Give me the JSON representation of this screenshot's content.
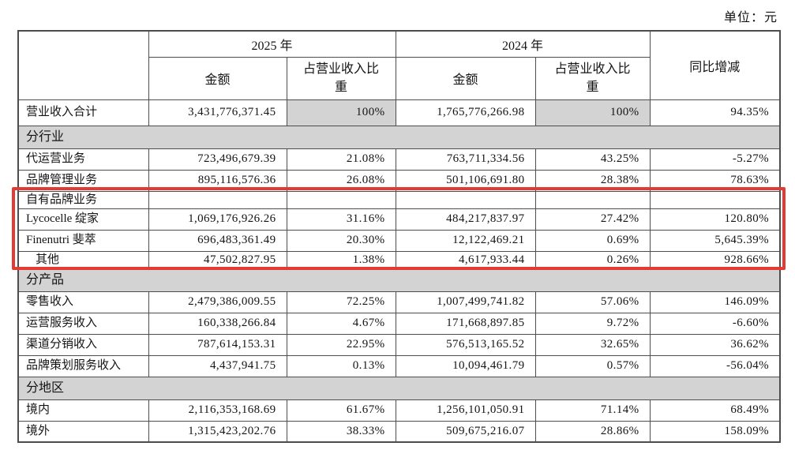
{
  "unit_label": "单位：元",
  "colors": {
    "section_bg": "#d3d3d3",
    "shade_bg": "#d3d3d3",
    "table_border": "#4d4d4d",
    "highlight_border": "#e23b33",
    "text": "#141414",
    "page_bg": "#ffffff"
  },
  "table": {
    "header": {
      "year_2025": "2025 年",
      "year_2024": "2024 年",
      "amount": "金额",
      "share": "占营业收入比重",
      "yoy": "同比增减"
    },
    "rows": [
      {
        "type": "data",
        "tall": true,
        "shade_shares": true,
        "label": "营业收入合计",
        "amount_2025": "3,431,776,371.45",
        "share_2025": "100%",
        "amount_2024": "1,765,776,266.98",
        "share_2024": "100%",
        "yoy": "94.35%"
      },
      {
        "type": "section",
        "label": "分行业"
      },
      {
        "type": "data",
        "label": "代运营业务",
        "amount_2025": "723,496,679.39",
        "share_2025": "21.08%",
        "amount_2024": "763,711,334.56",
        "share_2024": "43.25%",
        "yoy": "-5.27%"
      },
      {
        "type": "data",
        "label": "品牌管理业务",
        "amount_2025": "895,116,576.36",
        "share_2025": "26.08%",
        "amount_2024": "501,106,691.80",
        "share_2024": "28.38%",
        "yoy": "78.63%"
      },
      {
        "type": "data",
        "compact": true,
        "highlight": true,
        "label": "自有品牌业务",
        "amount_2025": "",
        "share_2025": "",
        "amount_2024": "",
        "share_2024": "",
        "yoy": ""
      },
      {
        "type": "data",
        "highlight": true,
        "label": "Lycocelle 绽家",
        "amount_2025": "1,069,176,926.26",
        "share_2025": "31.16%",
        "amount_2024": "484,217,837.97",
        "share_2024": "27.42%",
        "yoy": "120.80%"
      },
      {
        "type": "data",
        "highlight": true,
        "label": "Finenutri 斐萃",
        "amount_2025": "696,483,361.49",
        "share_2025": "20.30%",
        "amount_2024": "12,122,469.21",
        "share_2024": "0.69%",
        "yoy": "5,645.39%"
      },
      {
        "type": "data",
        "compact": true,
        "highlight": true,
        "indent": true,
        "label": "其他",
        "amount_2025": "47,502,827.95",
        "share_2025": "1.38%",
        "amount_2024": "4,617,933.44",
        "share_2024": "0.26%",
        "yoy": "928.66%"
      },
      {
        "type": "section",
        "label": "分产品"
      },
      {
        "type": "data",
        "label": "零售收入",
        "amount_2025": "2,479,386,009.55",
        "share_2025": "72.25%",
        "amount_2024": "1,007,499,741.82",
        "share_2024": "57.06%",
        "yoy": "146.09%"
      },
      {
        "type": "data",
        "label": "运营服务收入",
        "amount_2025": "160,338,266.84",
        "share_2025": "4.67%",
        "amount_2024": "171,668,897.85",
        "share_2024": "9.72%",
        "yoy": "-6.60%"
      },
      {
        "type": "data",
        "label": "渠道分销收入",
        "amount_2025": "787,614,153.31",
        "share_2025": "22.95%",
        "amount_2024": "576,513,165.52",
        "share_2024": "32.65%",
        "yoy": "36.62%"
      },
      {
        "type": "data",
        "label": "品牌策划服务收入",
        "amount_2025": "4,437,941.75",
        "share_2025": "0.13%",
        "amount_2024": "10,094,461.79",
        "share_2024": "0.57%",
        "yoy": "-56.04%"
      },
      {
        "type": "section",
        "label": "分地区"
      },
      {
        "type": "data",
        "label": "境内",
        "amount_2025": "2,116,353,168.69",
        "share_2025": "61.67%",
        "amount_2024": "1,256,101,050.91",
        "share_2024": "71.14%",
        "yoy": "68.49%"
      },
      {
        "type": "data",
        "label": "境外",
        "amount_2025": "1,315,423,202.76",
        "share_2025": "38.33%",
        "amount_2024": "509,675,216.07",
        "share_2024": "28.86%",
        "yoy": "158.09%"
      }
    ]
  }
}
